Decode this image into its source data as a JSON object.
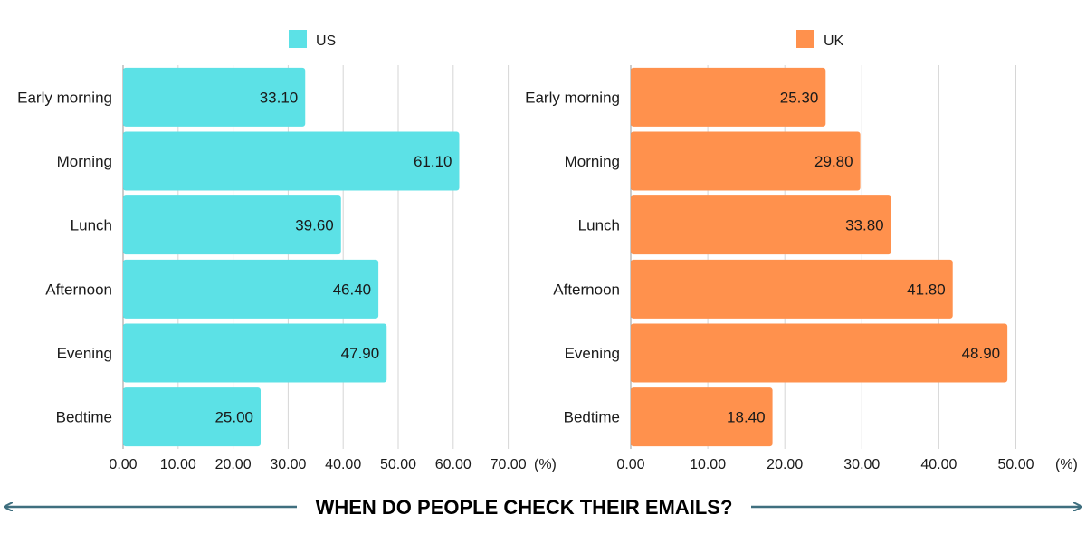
{
  "title": "WHEN DO PEOPLE CHECK THEIR EMAILS?",
  "colors": {
    "arrow": "#3f6f7f",
    "grid": "#d6d6d6",
    "axis": "#9a9a9a"
  },
  "chart_data": [
    {
      "type": "bar",
      "orientation": "horizontal",
      "categories": [
        "Early morning",
        "Morning",
        "Lunch",
        "Afternoon",
        "Evening",
        "Bedtime"
      ],
      "series": [
        {
          "name": "US",
          "color": "#5ce1e6",
          "values": [
            33.1,
            61.1,
            39.6,
            46.4,
            47.9,
            25.0
          ]
        }
      ],
      "xlim": [
        0,
        70
      ],
      "xticks": [
        "0.00",
        "10.00",
        "20.00",
        "30.00",
        "40.00",
        "50.00",
        "60.00",
        "70.00"
      ],
      "xunit": "(%)",
      "value_labels": [
        "33.10",
        "61.10",
        "39.60",
        "46.40",
        "47.90",
        "25.00"
      ],
      "grid": true,
      "legend": "top"
    },
    {
      "type": "bar",
      "orientation": "horizontal",
      "categories": [
        "Early morning",
        "Morning",
        "Lunch",
        "Afternoon",
        "Evening",
        "Bedtime"
      ],
      "series": [
        {
          "name": "UK",
          "color": "#ff914d",
          "values": [
            25.3,
            29.8,
            33.8,
            41.8,
            48.9,
            18.4
          ]
        }
      ],
      "xlim": [
        0,
        50
      ],
      "xticks": [
        "0.00",
        "10.00",
        "20.00",
        "30.00",
        "40.00",
        "50.00"
      ],
      "xunit": "(%)",
      "value_labels": [
        "25.30",
        "29.80",
        "33.80",
        "41.80",
        "48.90",
        "18.40"
      ],
      "grid": true,
      "legend": "top"
    }
  ]
}
